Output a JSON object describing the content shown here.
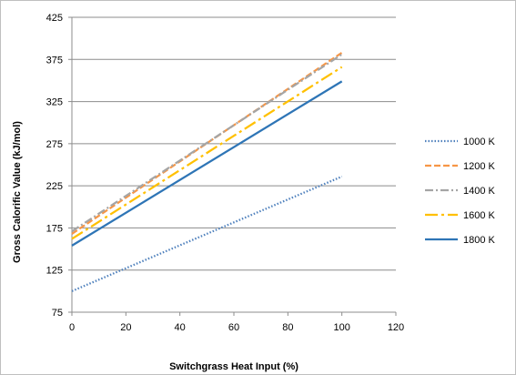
{
  "chart_data": {
    "type": "line",
    "title": "",
    "xlabel": "Switchgrass Heat Input (%)",
    "ylabel": "Gross Calorific Value (kJ/mol)",
    "xlim": [
      0,
      120
    ],
    "ylim": [
      75,
      425
    ],
    "xticks": [
      0,
      20,
      40,
      60,
      80,
      100,
      120
    ],
    "yticks": [
      75,
      125,
      175,
      225,
      275,
      325,
      375,
      425
    ],
    "grid": "horizontal",
    "legend_position": "right",
    "series": [
      {
        "name": "1000 K",
        "x": [
          0,
          100
        ],
        "y": [
          100,
          236
        ],
        "color": "#4f81bd",
        "dash": "dotted"
      },
      {
        "name": "1200 K",
        "x": [
          0,
          100
        ],
        "y": [
          168,
          383
        ],
        "color": "#f79646",
        "dash": "dashed"
      },
      {
        "name": "1400 K",
        "x": [
          0,
          100
        ],
        "y": [
          171,
          381
        ],
        "color": "#a5a5a5",
        "dash": "dash-dot"
      },
      {
        "name": "1600 K",
        "x": [
          0,
          100
        ],
        "y": [
          162,
          366
        ],
        "color": "#ffc000",
        "dash": "long-dash-dot"
      },
      {
        "name": "1800 K",
        "x": [
          0,
          100
        ],
        "y": [
          154,
          349
        ],
        "color": "#2e75b6",
        "dash": "solid"
      }
    ]
  }
}
